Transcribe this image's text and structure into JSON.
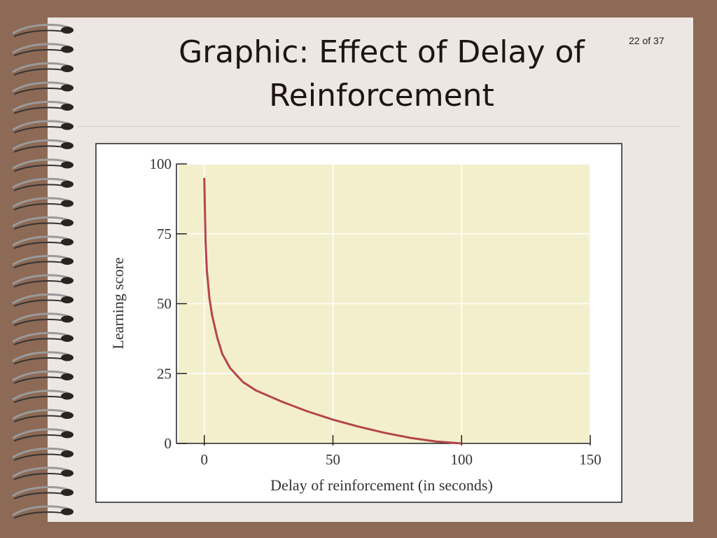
{
  "slide": {
    "title": "Graphic: Effect of Delay of Reinforcement",
    "page_number": "22 of 37"
  },
  "chart_data": {
    "type": "line",
    "x_label": "Delay of reinforcement (in seconds)",
    "y_label": "Learning score",
    "x": [
      0,
      0.5,
      1,
      2,
      3,
      5,
      7,
      10,
      15,
      20,
      30,
      40,
      50,
      60,
      70,
      80,
      90,
      100
    ],
    "series": [
      {
        "color": "#b5454a",
        "values": [
          95,
          72,
          62,
          52,
          46,
          38,
          32,
          27,
          22,
          19,
          15,
          11.5,
          8.5,
          6,
          3.8,
          2,
          0.7,
          0
        ]
      }
    ],
    "xlim": [
      -10,
      150
    ],
    "ylim": [
      0,
      100
    ],
    "xticks": [
      0,
      50,
      100,
      150
    ],
    "yticks": [
      0,
      25,
      50,
      75,
      100
    ],
    "grid": true
  }
}
